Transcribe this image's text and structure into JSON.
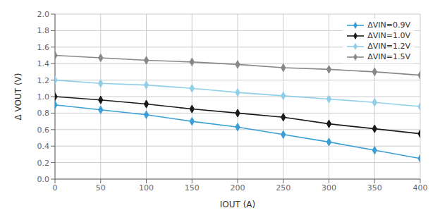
{
  "chart_data": {
    "type": "line",
    "x_label": "IOUT (A)",
    "y_label": "Δ VOUT (V)",
    "x": [
      0,
      50,
      100,
      150,
      200,
      250,
      300,
      350,
      400
    ],
    "series": [
      {
        "name": "ΔVIN=0.9V",
        "color": "#3a9fd4",
        "values": [
          0.9,
          0.84,
          0.78,
          0.7,
          0.63,
          0.54,
          0.45,
          0.35,
          0.25
        ]
      },
      {
        "name": "ΔVIN=1.0V",
        "color": "#1a1a1a",
        "values": [
          1.0,
          0.96,
          0.91,
          0.85,
          0.8,
          0.75,
          0.67,
          0.61,
          0.55
        ]
      },
      {
        "name": "ΔVIN=1.2V",
        "color": "#90cfe8",
        "values": [
          1.2,
          1.16,
          1.14,
          1.1,
          1.05,
          1.01,
          0.97,
          0.93,
          0.88
        ]
      },
      {
        "name": "ΔVIN=1.5V",
        "color": "#888888",
        "values": [
          1.5,
          1.47,
          1.44,
          1.42,
          1.39,
          1.35,
          1.33,
          1.3,
          1.26
        ]
      }
    ],
    "xlim": [
      0,
      400
    ],
    "ylim": [
      0,
      2.0
    ],
    "xticks": [
      0,
      50,
      100,
      150,
      200,
      250,
      300,
      350,
      400
    ],
    "yticks": [
      {
        "value": 0,
        "label": "0.0"
      },
      0.2,
      0.4,
      0.6,
      0.8,
      {
        "value": 1.0,
        "label": "1.0"
      },
      1.2,
      1.4,
      1.6,
      1.8,
      {
        "value": 2.0,
        "label": "2.0"
      }
    ],
    "grid": true,
    "legend": "upper right",
    "marker": "diamond"
  }
}
